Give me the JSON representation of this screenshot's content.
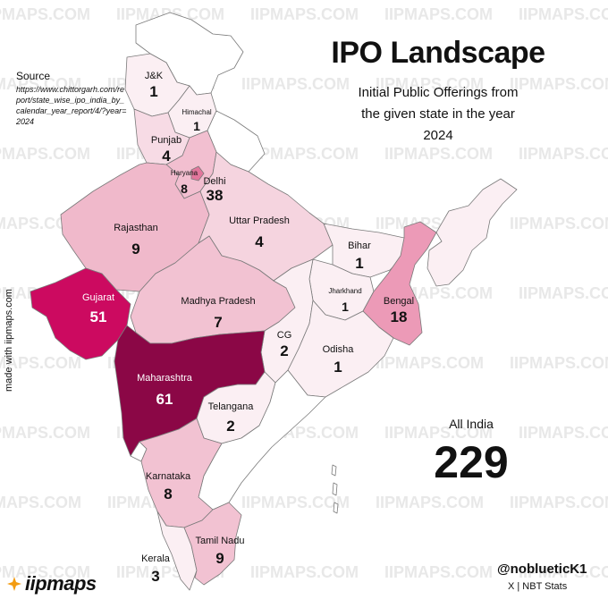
{
  "header": {
    "title": "IPO Landscape",
    "subtitle_lines": [
      "Initial Public Offerings from",
      "the given state in the year",
      "2024"
    ]
  },
  "source": {
    "label": "Source",
    "url": "https://www.chittorgarh.com/report/state_wise_ipo_india_by_calendar_year_report/4/?year=2024"
  },
  "credit": {
    "vertical": "made with iipmaps.com"
  },
  "watermark": {
    "text": "IIPMAPS.COM"
  },
  "total": {
    "label": "All India",
    "value": "229"
  },
  "footer": {
    "handle": "@noblueticK1",
    "sub": "X | NBT Stats"
  },
  "logo": {
    "text": "iipmaps"
  },
  "colors": {
    "scale_low": "#fbeff3",
    "scale_mid": "#f2bfd0",
    "scale_high": "#cc0a60",
    "scale_top": "#8b0746",
    "no_data": "#ffffff",
    "border": "#7a7a7a"
  },
  "states": {
    "jk": {
      "name": "J&K",
      "value": "1"
    },
    "himachal": {
      "name": "Himachal",
      "value": "1"
    },
    "punjab": {
      "name": "Punjab",
      "value": "4"
    },
    "haryana": {
      "name": "Haryana",
      "value": "8"
    },
    "delhi": {
      "name": "Delhi",
      "value": "38"
    },
    "rajasthan": {
      "name": "Rajasthan",
      "value": "9"
    },
    "uttar_pradesh": {
      "name": "Uttar Pradesh",
      "value": "4"
    },
    "bihar": {
      "name": "Bihar",
      "value": "1"
    },
    "jharkhand": {
      "name": "Jharkhand",
      "value": "1"
    },
    "bengal": {
      "name": "Bengal",
      "value": "18"
    },
    "gujarat": {
      "name": "Gujarat",
      "value": "51"
    },
    "madhya_pradesh": {
      "name": "Madhya Pradesh",
      "value": "7"
    },
    "cg": {
      "name": "CG",
      "value": "2"
    },
    "odisha": {
      "name": "Odisha",
      "value": "1"
    },
    "maharashtra": {
      "name": "Maharashtra",
      "value": "61"
    },
    "telangana": {
      "name": "Telangana",
      "value": "2"
    },
    "karnataka": {
      "name": "Karnataka",
      "value": "8"
    },
    "tamil_nadu": {
      "name": "Tamil Nadu",
      "value": "9"
    },
    "kerala": {
      "name": "Kerala",
      "value": "3"
    }
  }
}
